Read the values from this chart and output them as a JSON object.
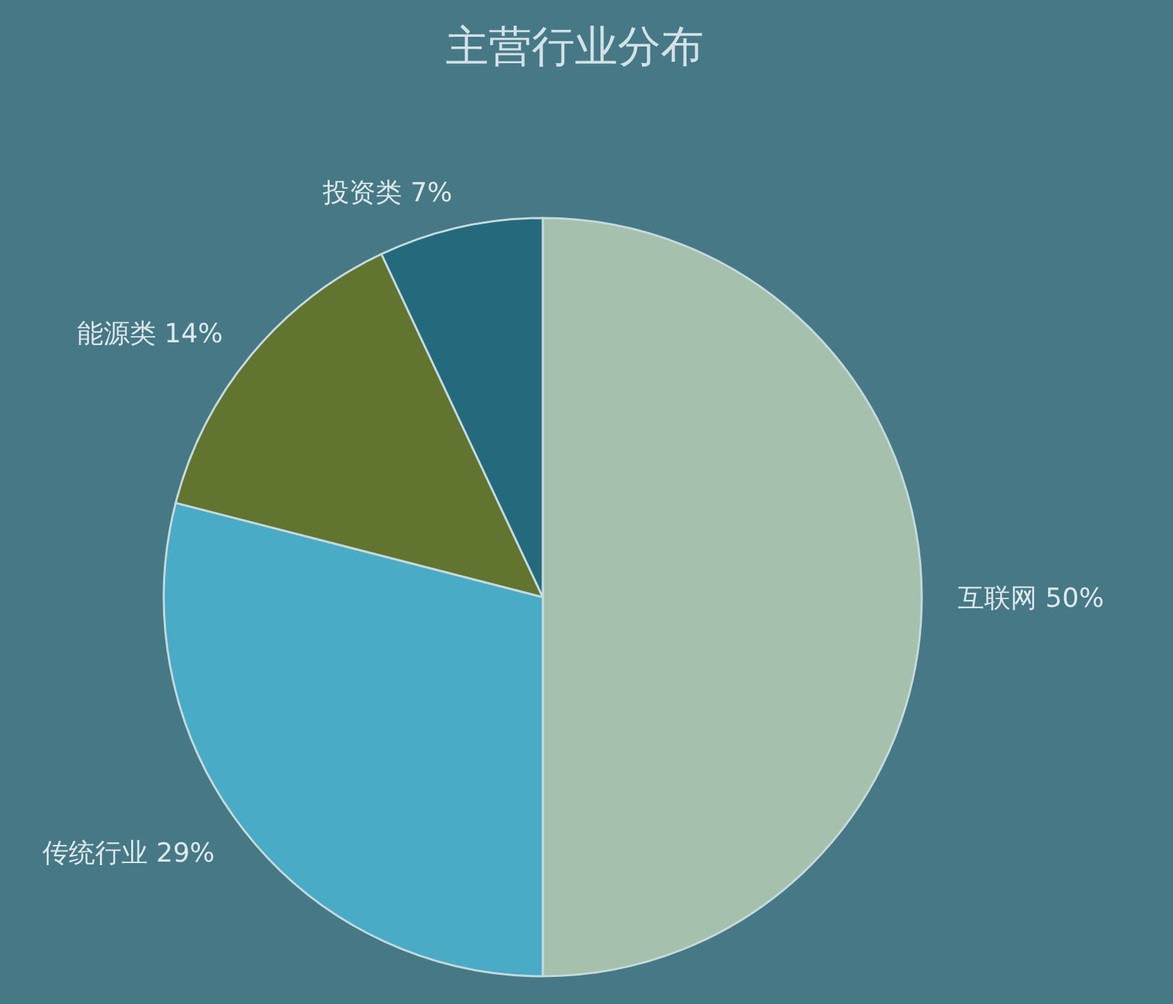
{
  "chart_data": {
    "type": "pie",
    "title": "主营行业分布",
    "categories": [
      "互联网",
      "传统行业",
      "能源类",
      "投资类"
    ],
    "values": [
      50,
      29,
      14,
      7
    ],
    "value_labels": [
      "50%",
      "29%",
      "14%",
      "7%"
    ],
    "colors": [
      "#a6c0ae",
      "#4aabc6",
      "#617430",
      "#256a7c"
    ],
    "legend": false
  }
}
